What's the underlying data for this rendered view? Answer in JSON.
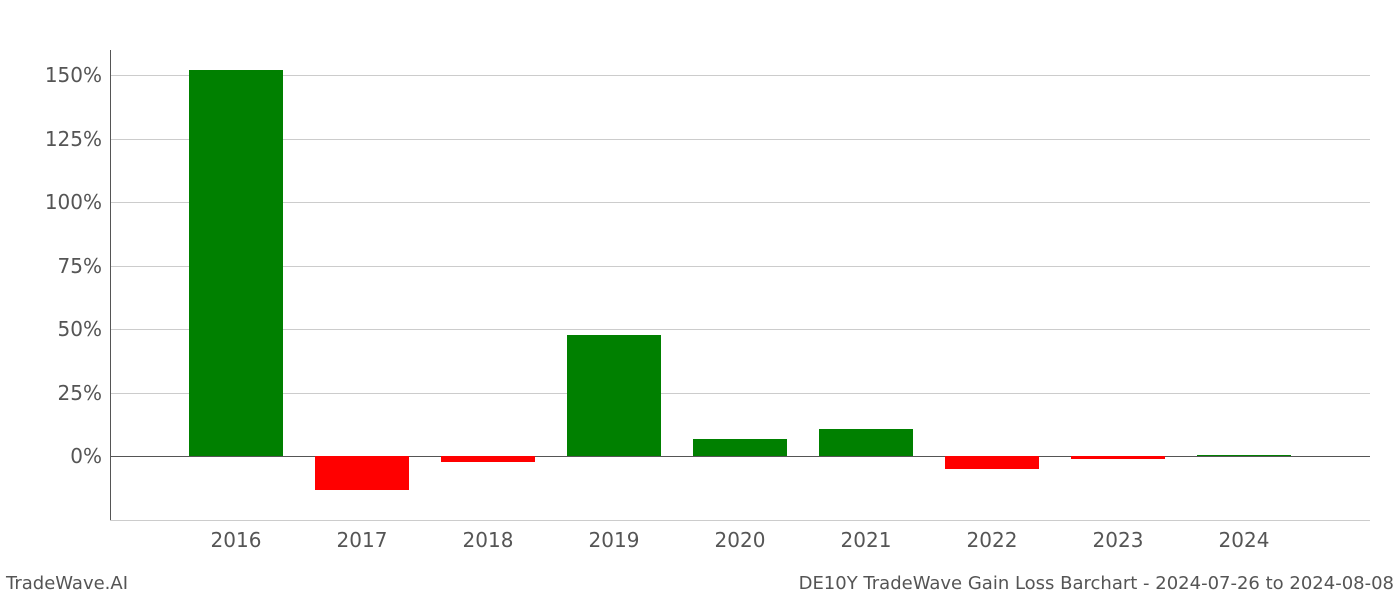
{
  "chart": {
    "type": "bar",
    "background_color": "#ffffff",
    "grid_color": "#cccccc",
    "axis_color": "#555555",
    "tick_label_color": "#555555",
    "positive_color": "#008000",
    "negative_color": "#ff0000",
    "yticks": [
      -25,
      0,
      25,
      50,
      75,
      100,
      125,
      150
    ],
    "ytick_labels": [
      "",
      "0%",
      "25%",
      "50%",
      "75%",
      "100%",
      "125%",
      "150%"
    ],
    "ylim_min": -25,
    "ylim_max": 160,
    "categories": [
      "2016",
      "2017",
      "2018",
      "2019",
      "2020",
      "2021",
      "2022",
      "2023",
      "2024"
    ],
    "values": [
      152,
      -13,
      -2,
      48,
      7,
      11,
      -5,
      -1,
      0.5
    ],
    "bar_width": 0.75,
    "label_fontsize": 20
  },
  "footer": {
    "left": "TradeWave.AI",
    "right": "DE10Y TradeWave Gain Loss Barchart - 2024-07-26 to 2024-08-08"
  }
}
